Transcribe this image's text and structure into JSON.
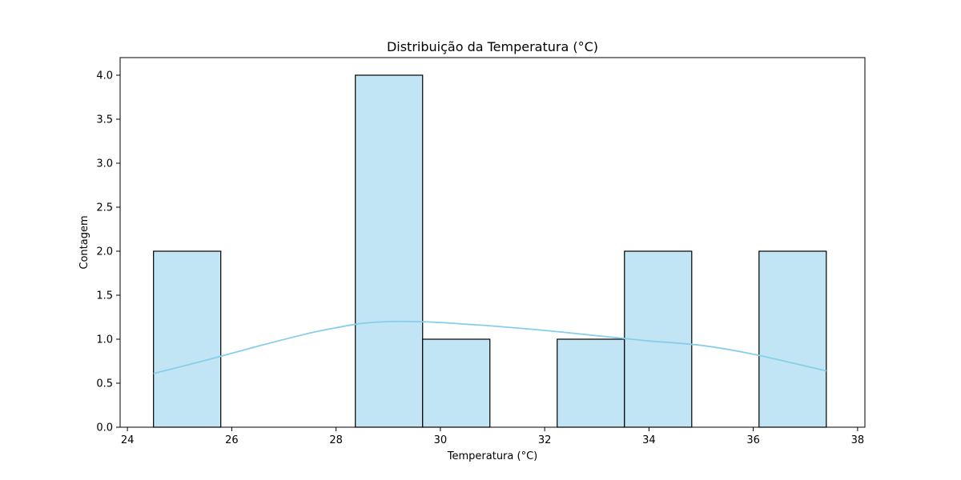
{
  "chart_data": {
    "type": "bar",
    "title": "Distribuição da Temperatura (°C)",
    "xlabel": "Temperatura (°C)",
    "ylabel": "Contagem",
    "xlim": [
      23.86,
      38.14
    ],
    "ylim": [
      0,
      4.2
    ],
    "xticks": [
      24,
      26,
      28,
      30,
      32,
      34,
      36,
      38
    ],
    "yticks": [
      0.0,
      0.5,
      1.0,
      1.5,
      2.0,
      2.5,
      3.0,
      3.5,
      4.0
    ],
    "bin_edges": [
      24.5,
      25.79,
      27.08,
      28.37,
      29.66,
      30.95,
      32.24,
      33.53,
      34.82,
      36.11,
      37.4
    ],
    "values": [
      2,
      0,
      0,
      4,
      1,
      0,
      1,
      2,
      0,
      2
    ],
    "kde": {
      "x": [
        24.5,
        25.5,
        26.5,
        27.5,
        28.0,
        28.5,
        29.0,
        29.5,
        30.0,
        30.5,
        31.0,
        32.0,
        33.0,
        33.5,
        34.0,
        35.0,
        36.0,
        37.4
      ],
      "y": [
        0.61,
        0.76,
        0.92,
        1.07,
        1.13,
        1.18,
        1.2,
        1.2,
        1.19,
        1.17,
        1.15,
        1.1,
        1.04,
        1.01,
        0.98,
        0.93,
        0.83,
        0.64
      ]
    },
    "colors": {
      "bar_fill": "#c1e5f4",
      "bar_edge": "#000000",
      "kde_line": "#87ceeb"
    },
    "grid": false,
    "legend": "none"
  }
}
